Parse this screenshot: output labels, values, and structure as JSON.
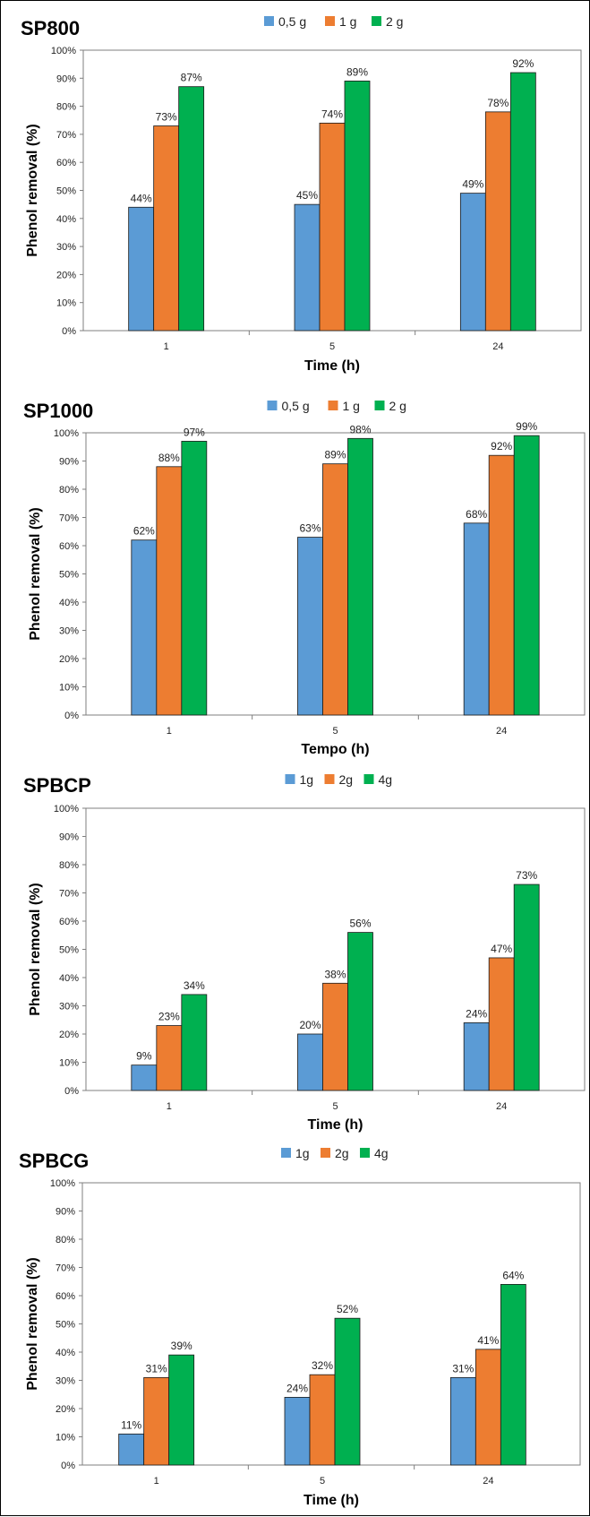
{
  "colors": {
    "series_1": "#5b9bd5",
    "series_2": "#ed7d31",
    "series_3": "#00b050",
    "bar_stroke": "#1a1a1a",
    "plot_border": "#7f7f7f"
  },
  "chart_data": [
    {
      "type": "bar",
      "title": "SP800",
      "ylabel": "Phenol removal (%)",
      "xlabel": "Time (h)",
      "categories": [
        "1",
        "5",
        "24"
      ],
      "series": [
        {
          "name": "0,5 g",
          "values": [
            44,
            45,
            49
          ],
          "labels": [
            "44%",
            "45%",
            "49%"
          ]
        },
        {
          "name": "1 g",
          "values": [
            73,
            74,
            78
          ],
          "labels": [
            "73%",
            "74%",
            "78%"
          ]
        },
        {
          "name": "2 g",
          "values": [
            87,
            89,
            92
          ],
          "labels": [
            "87%",
            "89%",
            "92%"
          ]
        }
      ],
      "ylim": [
        0,
        100
      ],
      "yticks": [
        "0%",
        "10%",
        "20%",
        "30%",
        "40%",
        "50%",
        "60%",
        "70%",
        "80%",
        "90%",
        "100%"
      ],
      "legend": "top-center",
      "grid": false
    },
    {
      "type": "bar",
      "title": "SP1000",
      "ylabel": "Phenol removal (%)",
      "xlabel": "Tempo (h)",
      "categories": [
        "1",
        "5",
        "24"
      ],
      "series": [
        {
          "name": "0,5 g",
          "values": [
            62,
            63,
            68
          ],
          "labels": [
            "62%",
            "63%",
            "68%"
          ]
        },
        {
          "name": "1 g",
          "values": [
            88,
            89,
            92
          ],
          "labels": [
            "88%",
            "89%",
            "92%"
          ]
        },
        {
          "name": "2 g",
          "values": [
            97,
            98,
            99
          ],
          "labels": [
            "97%",
            "98%",
            "99%"
          ]
        }
      ],
      "ylim": [
        0,
        100
      ],
      "yticks": [
        "0%",
        "10%",
        "20%",
        "30%",
        "40%",
        "50%",
        "60%",
        "70%",
        "80%",
        "90%",
        "100%"
      ],
      "legend": "top-center",
      "grid": false
    },
    {
      "type": "bar",
      "title": "SPBCP",
      "ylabel": "Phenol removal (%)",
      "xlabel": "Time (h)",
      "categories": [
        "1",
        "5",
        "24"
      ],
      "series": [
        {
          "name": "1g",
          "values": [
            9,
            20,
            24
          ],
          "labels": [
            "9%",
            "20%",
            "24%"
          ]
        },
        {
          "name": "2g",
          "values": [
            23,
            38,
            47
          ],
          "labels": [
            "23%",
            "38%",
            "47%"
          ]
        },
        {
          "name": "4g",
          "values": [
            34,
            56,
            73
          ],
          "labels": [
            "34%",
            "56%",
            "73%"
          ]
        }
      ],
      "ylim": [
        0,
        100
      ],
      "yticks": [
        "0%",
        "10%",
        "20%",
        "30%",
        "40%",
        "50%",
        "60%",
        "70%",
        "80%",
        "90%",
        "100%"
      ],
      "legend": "top-center",
      "grid": false
    },
    {
      "type": "bar",
      "title": "SPBCG",
      "ylabel": "Phenol removal (%)",
      "xlabel": "Time (h)",
      "categories": [
        "1",
        "5",
        "24"
      ],
      "series": [
        {
          "name": "1g",
          "values": [
            11,
            24,
            31
          ],
          "labels": [
            "11%",
            "24%",
            "31%"
          ]
        },
        {
          "name": "2g",
          "values": [
            31,
            32,
            41
          ],
          "labels": [
            "31%",
            "32%",
            "41%"
          ]
        },
        {
          "name": "4g",
          "values": [
            39,
            52,
            64
          ],
          "labels": [
            "39%",
            "52%",
            "64%"
          ]
        }
      ],
      "ylim": [
        0,
        100
      ],
      "yticks": [
        "0%",
        "10%",
        "20%",
        "30%",
        "40%",
        "50%",
        "60%",
        "70%",
        "80%",
        "90%",
        "100%"
      ],
      "legend": "top-center",
      "grid": false
    }
  ]
}
